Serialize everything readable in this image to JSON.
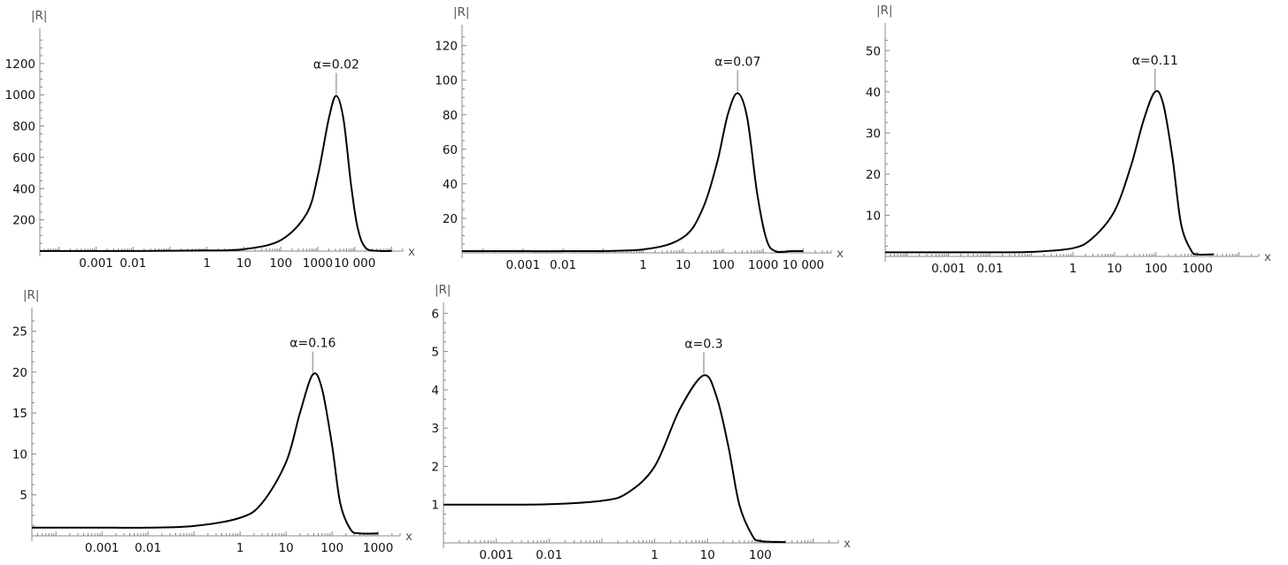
{
  "chart_data": [
    {
      "type": "line",
      "xscale": "log",
      "xlabel": "x",
      "ylabel": "|R|",
      "xlim": [
        3e-05,
        200000
      ],
      "ylim": [
        0,
        1380
      ],
      "xticks": [
        {
          "v": 0.001,
          "label": "0.001"
        },
        {
          "v": 0.01,
          "label": "0.01"
        },
        {
          "v": 1,
          "label": "1"
        },
        {
          "v": 10,
          "label": "10"
        },
        {
          "v": 100,
          "label": "100"
        },
        {
          "v": 1000,
          "label": "1000"
        },
        {
          "v": 10000,
          "label": "10 000"
        }
      ],
      "yticks": [
        200,
        400,
        600,
        800,
        1000,
        1200
      ],
      "annotation": {
        "text": "α=0.02",
        "x": 3162,
        "y": 993
      },
      "series": [
        {
          "x": [
            3e-05,
            0.001,
            0.01,
            1,
            10,
            100,
            500,
            1000,
            2000,
            3162,
            5000,
            8000,
            12000,
            20000,
            50000,
            100000
          ],
          "y": [
            1,
            1,
            1,
            4,
            12,
            70,
            240,
            480,
            850,
            993,
            840,
            420,
            150,
            20,
            1,
            1
          ]
        }
      ]
    },
    {
      "type": "line",
      "xscale": "log",
      "xlabel": "x",
      "ylabel": "|R|",
      "xlim": [
        3e-05,
        50000
      ],
      "ylim": [
        0,
        128
      ],
      "xticks": [
        {
          "v": 0.001,
          "label": "0.001"
        },
        {
          "v": 0.01,
          "label": "0.01"
        },
        {
          "v": 1,
          "label": "1"
        },
        {
          "v": 10,
          "label": "10"
        },
        {
          "v": 100,
          "label": "100"
        },
        {
          "v": 1000,
          "label": "1000"
        },
        {
          "v": 10000,
          "label": "10 000"
        }
      ],
      "yticks": [
        20,
        40,
        60,
        80,
        100,
        120
      ],
      "annotation": {
        "text": "α=0.07",
        "x": 230,
        "y": 92.5
      },
      "series": [
        {
          "x": [
            3e-05,
            0.001,
            0.01,
            1,
            10,
            30,
            70,
            130,
            230,
            400,
            700,
            1200,
            2000,
            5000,
            10000
          ],
          "y": [
            1,
            1,
            1,
            2,
            9,
            25,
            52,
            80,
            92.5,
            78,
            35,
            8,
            1,
            1,
            1
          ]
        }
      ]
    },
    {
      "type": "line",
      "xscale": "log",
      "xlabel": "x",
      "ylabel": "|R|",
      "xlim": [
        3e-05,
        30000
      ],
      "ylim": [
        0,
        55
      ],
      "xticks": [
        {
          "v": 0.001,
          "label": "0.001"
        },
        {
          "v": 0.01,
          "label": "0.01"
        },
        {
          "v": 1,
          "label": "1"
        },
        {
          "v": 10,
          "label": "10"
        },
        {
          "v": 100,
          "label": "100"
        },
        {
          "v": 1000,
          "label": "1000"
        }
      ],
      "yticks": [
        10,
        20,
        30,
        40,
        50
      ],
      "annotation": {
        "text": "α=0.11",
        "x": 95,
        "y": 40
      },
      "series": [
        {
          "x": [
            3e-05,
            0.001,
            0.01,
            0.1,
            1,
            3,
            10,
            25,
            50,
            95,
            150,
            250,
            400,
            700,
            1000,
            2500
          ],
          "y": [
            1,
            1,
            1,
            1.1,
            2,
            4.5,
            11,
            22,
            33,
            40,
            37,
            24,
            8,
            1.5,
            0.5,
            0.5
          ]
        }
      ]
    },
    {
      "type": "line",
      "xscale": "log",
      "xlabel": "x",
      "ylabel": "|R|",
      "xlim": [
        3e-05,
        3000
      ],
      "ylim": [
        0,
        27
      ],
      "xticks": [
        {
          "v": 0.001,
          "label": "0.001"
        },
        {
          "v": 0.01,
          "label": "0.01"
        },
        {
          "v": 1,
          "label": "1"
        },
        {
          "v": 10,
          "label": "10"
        },
        {
          "v": 100,
          "label": "100"
        },
        {
          "v": 1000,
          "label": "1000"
        }
      ],
      "yticks": [
        5,
        10,
        15,
        20,
        25
      ],
      "annotation": {
        "text": "α=0.16",
        "x": 38,
        "y": 19.7
      },
      "series": [
        {
          "x": [
            3e-05,
            0.001,
            0.01,
            0.1,
            1,
            3,
            10,
            20,
            38,
            60,
            100,
            150,
            250,
            400,
            1000
          ],
          "y": [
            1,
            1,
            1,
            1.2,
            2.2,
            4,
            9,
            15,
            19.7,
            18,
            11,
            4,
            0.8,
            0.3,
            0.3
          ]
        }
      ]
    },
    {
      "type": "line",
      "xscale": "log",
      "xlabel": "x",
      "ylabel": "|R|",
      "xlim": [
        0.0001,
        3000
      ],
      "ylim": [
        0,
        6.1
      ],
      "xticks": [
        {
          "v": 0.001,
          "label": "0.001"
        },
        {
          "v": 0.01,
          "label": "0.01"
        },
        {
          "v": 1,
          "label": "1"
        },
        {
          "v": 10,
          "label": "10"
        },
        {
          "v": 100,
          "label": "100"
        }
      ],
      "yticks": [
        1,
        2,
        3,
        4,
        5,
        6
      ],
      "annotation": {
        "text": "α=0.3",
        "x": 8.5,
        "y": 4.38
      },
      "series": [
        {
          "x": [
            0.0001,
            0.001,
            0.01,
            0.1,
            0.3,
            1,
            3,
            8.5,
            15,
            25,
            40,
            70,
            100,
            300
          ],
          "y": [
            1,
            1,
            1.01,
            1.1,
            1.3,
            2,
            3.5,
            4.38,
            3.8,
            2.5,
            1,
            0.2,
            0.05,
            0.02
          ]
        }
      ]
    }
  ]
}
